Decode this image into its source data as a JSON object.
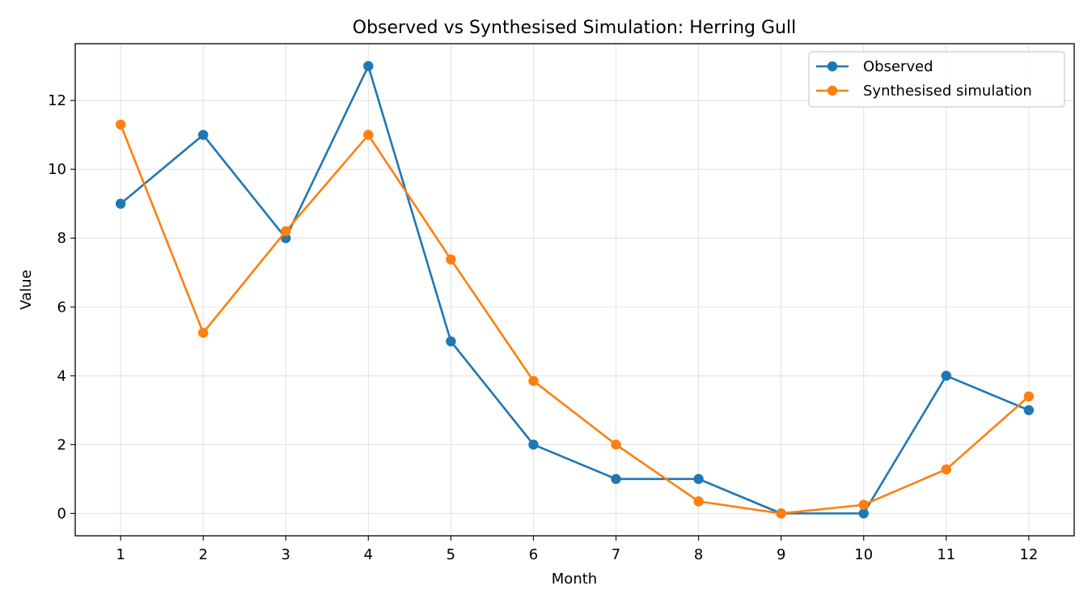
{
  "chart_data": {
    "type": "line",
    "title": "Observed vs Synthesised Simulation: Herring Gull",
    "xlabel": "Month",
    "ylabel": "Value",
    "x": [
      1,
      2,
      3,
      4,
      5,
      6,
      7,
      8,
      9,
      10,
      11,
      12
    ],
    "xticks": [
      "1",
      "2",
      "3",
      "4",
      "5",
      "6",
      "7",
      "8",
      "9",
      "10",
      "11",
      "12"
    ],
    "yticks": [
      0,
      2,
      4,
      6,
      8,
      10,
      12
    ],
    "xlim": [
      0.45,
      12.55
    ],
    "ylim": [
      -0.65,
      13.65
    ],
    "grid": true,
    "legend_position": "top-right",
    "series": [
      {
        "name": "Observed",
        "color": "#1f77b4",
        "marker": "circle",
        "values": [
          9,
          11,
          8,
          13,
          5,
          2,
          1,
          1,
          0,
          0,
          4,
          3
        ]
      },
      {
        "name": "Synthesised simulation",
        "color": "#ff7f0e",
        "marker": "circle",
        "values": [
          11.3,
          5.25,
          8.2,
          11.0,
          7.38,
          3.85,
          2.0,
          0.35,
          0.0,
          0.25,
          1.28,
          3.4
        ]
      }
    ]
  }
}
